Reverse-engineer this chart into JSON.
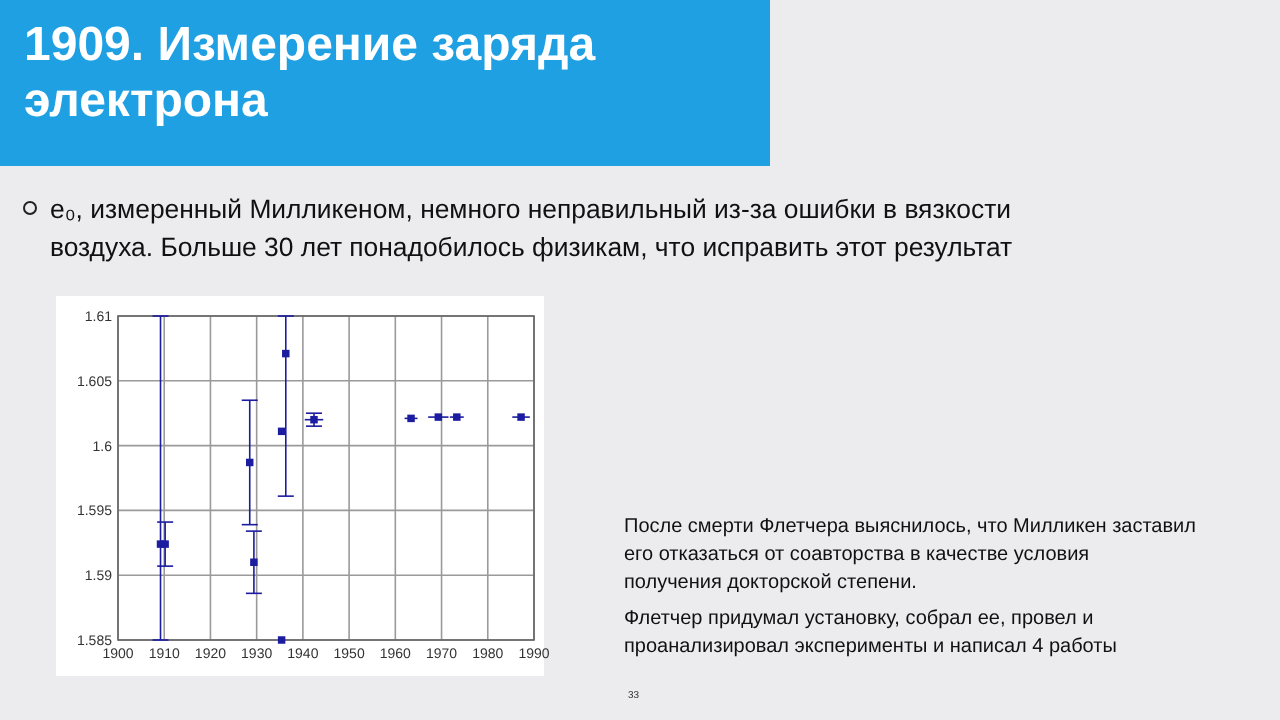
{
  "chart_data": {
    "type": "scatter",
    "title": "1909. Измерение заряда электрона",
    "annotations": [
      "e₀, измеренный Милликеном, немного неправильный из-за ошибки в вязкости воздуха. Больше 30 лет понадобилось физикам, что исправить этот результат",
      "После смерти Флетчера выяснилось, что Милликен заставил его отказаться от соавторства в качестве условия получения докторской степени.",
      "Флетчер придумал установку, собрал ее, провел и проанализировал эксперименты и написал 4 работы",
      "33"
    ],
    "series": [
      {
        "color": "#1c1ca0",
        "x": [
          1909.2,
          1910.2,
          1928.5,
          1929.4,
          1935.4,
          1935.4,
          1936.3,
          1942.4,
          1963.4,
          1969.3,
          1973.3,
          1987.2
        ],
        "values": [
          1.5924,
          1.5924,
          1.5987,
          1.591,
          1.6011,
          1.585,
          1.6071,
          1.602,
          1.6021,
          1.6022,
          1.6022,
          1.6022
        ],
        "errors": [
          [
            1.585,
            1.61
          ],
          0.0017,
          0.0048,
          0.0024,
          null,
          null,
          [
            1.5961,
            1.61
          ],
          0.0005,
          null,
          null,
          null,
          null
        ],
        "xerrors": [
          null,
          null,
          null,
          null,
          null,
          null,
          null,
          2,
          1.4,
          2.2,
          1.5,
          1.9
        ]
      }
    ],
    "xlim": [
      1900,
      1990
    ],
    "xticks": [
      1900,
      1910,
      1920,
      1930,
      1940,
      1950,
      1960,
      1970,
      1980,
      1990
    ],
    "ylim": [
      1.585,
      1.61
    ],
    "yticks": [
      1.585,
      1.59,
      1.595,
      1.6,
      1.605,
      1.61
    ],
    "grid": true,
    "marker": "square"
  }
}
